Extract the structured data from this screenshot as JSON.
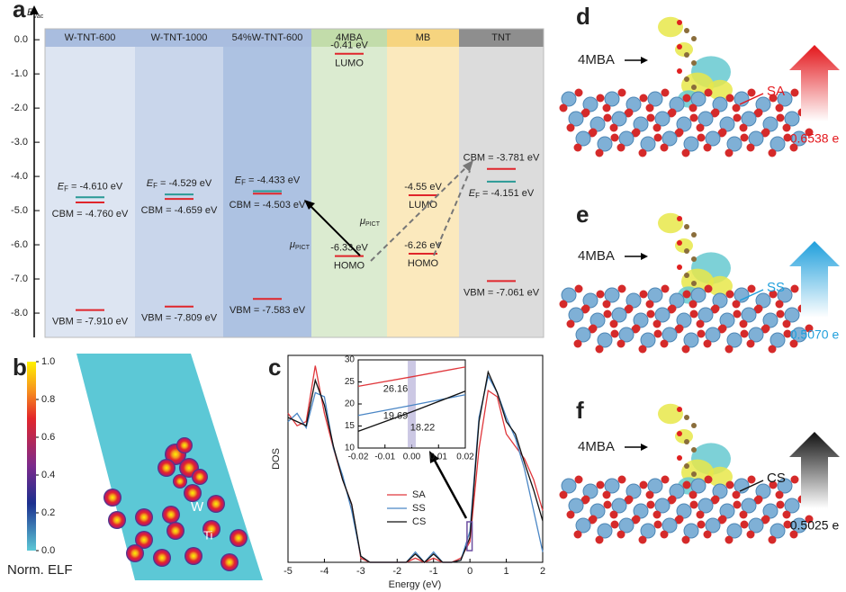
{
  "panel_labels": [
    "a",
    "b",
    "c",
    "d",
    "e",
    "f"
  ],
  "chart_data": [
    {
      "type": "energy-levels",
      "y_label": "E",
      "y_label_sub": "vac",
      "ylim": [
        -8.71,
        0.32
      ],
      "yticks": [
        {
          "value": 0,
          "label": "0.0"
        },
        {
          "value": -1,
          "label": "-1.0"
        },
        {
          "value": -2,
          "label": "-2.0"
        },
        {
          "value": -3,
          "label": "-3.0"
        },
        {
          "value": -4,
          "label": "-4.0"
        },
        {
          "value": -5,
          "label": "-5.0"
        },
        {
          "value": -6,
          "label": "-6.0"
        },
        {
          "value": -7,
          "label": "-7.0"
        },
        {
          "value": -8,
          "label": "-8.0"
        }
      ],
      "fermi_symbol": "E",
      "fermi_sub": "F",
      "arrow_label": "μ",
      "arrow_label_sub": "PICT",
      "columns": [
        {
          "name": "W-TNT-600",
          "color": "#dde5f2",
          "header_color": "#a9bddf",
          "levels": [
            {
              "value": -4.61,
              "label": "= -4.610 eV",
              "color": "#2a9a96",
              "fermi": true
            },
            {
              "value": -4.76,
              "label": "CBM = -4.760 eV",
              "color": "#e0252b"
            },
            {
              "value": -7.91,
              "label": "VBM = -7.910 eV",
              "color": "#e0252b"
            }
          ]
        },
        {
          "name": "W-TNT-1000",
          "color": "#c9d6eb",
          "header_color": "#a9bddf",
          "levels": [
            {
              "value": -4.529,
              "label": "= -4.529 eV",
              "color": "#2a9a96",
              "fermi": true
            },
            {
              "value": -4.659,
              "label": "CBM = -4.659 eV",
              "color": "#e0252b"
            },
            {
              "value": -7.809,
              "label": "VBM = -7.809 eV",
              "color": "#e0252b"
            }
          ]
        },
        {
          "name": "54%W-TNT-600",
          "color": "#adc2e2",
          "header_color": "#a9bddf",
          "levels": [
            {
              "value": -4.433,
              "label": "= -4.433 eV",
              "color": "#2a9a96",
              "fermi": true
            },
            {
              "value": -4.503,
              "label": "CBM = -4.503 eV",
              "color": "#e0252b"
            },
            {
              "value": -7.583,
              "label": "VBM = -7.583 eV",
              "color": "#e0252b"
            }
          ]
        },
        {
          "name": "4MBA",
          "color": "#dbebd0",
          "header_color": "#c2dcaa",
          "levels": [
            {
              "value": -0.41,
              "label": "-0.41 eV",
              "name": "LUMO",
              "color": "#e0252b"
            },
            {
              "value": -6.33,
              "label": "-6.33 eV",
              "name": "HOMO",
              "color": "#e0252b"
            }
          ]
        },
        {
          "name": "MB",
          "color": "#fbe9bd",
          "header_color": "#f6d47f",
          "levels": [
            {
              "value": -4.55,
              "label": "-4.55 eV",
              "name": "LUMO",
              "color": "#e0252b"
            },
            {
              "value": -6.26,
              "label": "-6.26 eV",
              "name": "HOMO",
              "color": "#e0252b"
            }
          ]
        },
        {
          "name": "TNT",
          "color": "#dcdcdc",
          "header_color": "#8e8e8e",
          "levels": [
            {
              "value": -3.781,
              "label": "CBM = -3.781 eV",
              "color": "#e0252b"
            },
            {
              "value": -4.151,
              "label": "= -4.151 eV",
              "color": "#2a9a96",
              "fermi": true
            },
            {
              "value": -7.061,
              "label": "VBM = -7.061 eV",
              "color": "#e0252b"
            }
          ]
        }
      ]
    },
    {
      "type": "colorbar",
      "label": "Norm. ELF",
      "ylim": [
        0,
        1
      ],
      "yticks": [
        {
          "value": 0,
          "label": "0.0"
        },
        0.2,
        0.4,
        0.6,
        0.8,
        {
          "value": 1,
          "label": "1.0"
        }
      ],
      "atom_labels": [
        "W",
        "Ti"
      ]
    },
    {
      "type": "line",
      "x_label": "Energy (eV)",
      "y_label": "DOS",
      "xlim": [
        -5,
        2
      ],
      "ylim": [
        0,
        100
      ],
      "xticks": [
        -5,
        -4,
        -3,
        -2,
        -1,
        0,
        1,
        2
      ],
      "legend": "lower center",
      "x": [
        -5,
        -4.75,
        -4.5,
        -4.25,
        -4,
        -3.75,
        -3.5,
        -3.25,
        -3,
        -2.75,
        -2.5,
        -2.25,
        -2,
        -1.75,
        -1.5,
        -1.25,
        -1,
        -0.75,
        -0.5,
        -0.25,
        0,
        0.25,
        0.5,
        0.75,
        1,
        1.25,
        1.5,
        1.75,
        2
      ],
      "series": [
        {
          "name": "SA",
          "color": "#e0373c",
          "values": [
            72,
            66,
            68,
            95,
            72,
            55,
            40,
            28,
            2,
            0,
            0,
            0,
            0,
            0,
            2,
            0,
            2,
            0,
            0,
            2,
            10,
            55,
            83,
            80,
            62,
            56,
            50,
            40,
            25
          ]
        },
        {
          "name": "SS",
          "color": "#4a86c5",
          "values": [
            68,
            72,
            65,
            82,
            80,
            55,
            42,
            25,
            3,
            0,
            0,
            0,
            0,
            0,
            5,
            0,
            5,
            0,
            0,
            1,
            15,
            70,
            90,
            82,
            70,
            60,
            45,
            25,
            5
          ]
        },
        {
          "name": "CS",
          "color": "#111111",
          "values": [
            70,
            68,
            66,
            88,
            76,
            56,
            40,
            28,
            3,
            0,
            0,
            0,
            0,
            0,
            4,
            0,
            4,
            0,
            0,
            1,
            12,
            68,
            92,
            82,
            68,
            62,
            48,
            35,
            20
          ]
        }
      ]
    },
    {
      "type": "line",
      "inset": true,
      "xlim": [
        -0.02,
        0.02
      ],
      "ylim": [
        10,
        30
      ],
      "xticks": [
        -0.02,
        -0.01,
        {
          "value": 0,
          "label": "0.00"
        },
        0.01,
        0.02
      ],
      "yticks": [
        10,
        15,
        20,
        25,
        30
      ],
      "x": [
        -0.02,
        0,
        0.02
      ],
      "series": [
        {
          "name": "SA",
          "color": "#e0373c",
          "values": [
            24.0,
            26.16,
            28.4
          ]
        },
        {
          "name": "SS",
          "color": "#4a86c5",
          "values": [
            17.4,
            19.69,
            22.1
          ]
        },
        {
          "name": "CS",
          "color": "#111111",
          "values": [
            13.8,
            18.22,
            22.9
          ]
        }
      ]
    }
  ],
  "charge_panels": [
    {
      "molecule": "4MBA",
      "site": "SA",
      "charge": "0.6538 e",
      "color": "#e3161b"
    },
    {
      "molecule": "4MBA",
      "site": "SS",
      "charge": "0.5070 e",
      "color": "#1f9fdc"
    },
    {
      "molecule": "4MBA",
      "site": "CS",
      "charge": "0.5025 e",
      "color": "#111111"
    }
  ]
}
